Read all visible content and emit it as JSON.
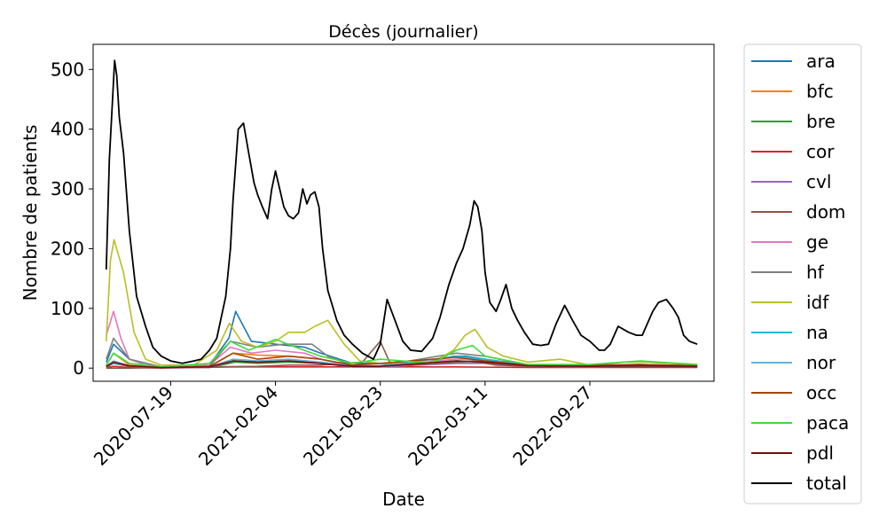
{
  "chart_data": {
    "type": "line",
    "title": "Décès (journalier)",
    "xlabel": "Date",
    "ylabel": "Nombre de patients",
    "ylim": [
      -22,
      542
    ],
    "xlim": [
      "2020-02-22",
      "2023-05-22"
    ],
    "x_ticks": [
      "2020-07-19",
      "2021-02-04",
      "2021-08-23",
      "2022-03-11",
      "2022-09-27"
    ],
    "y_ticks": [
      0,
      100,
      200,
      300,
      400,
      500
    ],
    "grid": false,
    "legend_position": "outside-right",
    "series": [
      {
        "name": "ara",
        "color": "#1f77b4",
        "dates": [
          "2020-03-18",
          "2020-04-01",
          "2020-05-01",
          "2020-07-01",
          "2020-10-01",
          "2020-11-07",
          "2020-11-20",
          "2020-12-20",
          "2021-02-04",
          "2021-04-01",
          "2021-05-01",
          "2021-07-01",
          "2021-08-23",
          "2021-11-01",
          "2022-01-10",
          "2022-02-01",
          "2022-03-11",
          "2022-04-15",
          "2022-06-01",
          "2022-09-27",
          "2023-01-01",
          "2023-03-15",
          "2023-04-20"
        ],
        "values": [
          10,
          40,
          15,
          2,
          5,
          50,
          95,
          45,
          40,
          35,
          25,
          8,
          8,
          6,
          20,
          20,
          15,
          8,
          4,
          5,
          5,
          5,
          3
        ]
      },
      {
        "name": "bfc",
        "color": "#ff7f0e",
        "dates": [
          "2020-03-18",
          "2020-04-01",
          "2020-05-01",
          "2020-07-01",
          "2020-10-01",
          "2020-11-15",
          "2021-01-01",
          "2021-03-01",
          "2021-05-01",
          "2021-07-01",
          "2021-08-23",
          "2022-01-15",
          "2022-03-11",
          "2022-06-01",
          "2022-09-27",
          "2023-01-01",
          "2023-04-20"
        ],
        "values": [
          5,
          25,
          5,
          1,
          2,
          25,
          22,
          20,
          15,
          3,
          3,
          12,
          10,
          3,
          3,
          4,
          2
        ]
      },
      {
        "name": "bre",
        "color": "#2ca02c",
        "dates": [
          "2020-03-18",
          "2020-04-01",
          "2020-05-01",
          "2020-07-01",
          "2020-10-01",
          "2020-11-20",
          "2021-01-01",
          "2021-03-01",
          "2021-05-01",
          "2021-07-01",
          "2021-08-23",
          "2022-01-15",
          "2022-03-11",
          "2022-06-01",
          "2022-09-27",
          "2023-01-01",
          "2023-04-20"
        ],
        "values": [
          2,
          8,
          3,
          1,
          1,
          10,
          8,
          10,
          8,
          2,
          2,
          10,
          12,
          5,
          3,
          5,
          3
        ]
      },
      {
        "name": "cor",
        "color": "#d62728",
        "dates": [
          "2020-03-18",
          "2020-04-01",
          "2020-05-01",
          "2020-07-01",
          "2020-11-15",
          "2021-03-01",
          "2021-08-23",
          "2022-01-15",
          "2022-06-01",
          "2022-09-27",
          "2023-04-20"
        ],
        "values": [
          1,
          3,
          1,
          0,
          2,
          2,
          2,
          2,
          1,
          1,
          1
        ]
      },
      {
        "name": "cvl",
        "color": "#9467bd",
        "dates": [
          "2020-03-18",
          "2020-04-01",
          "2020-05-01",
          "2020-07-01",
          "2020-10-01",
          "2020-11-15",
          "2021-01-01",
          "2021-03-15",
          "2021-05-01",
          "2021-07-01",
          "2021-08-23",
          "2022-01-15",
          "2022-03-11",
          "2022-06-01",
          "2022-09-27",
          "2023-01-01",
          "2023-04-20"
        ],
        "values": [
          2,
          8,
          3,
          1,
          1,
          12,
          10,
          12,
          8,
          2,
          2,
          8,
          8,
          3,
          2,
          3,
          2
        ]
      },
      {
        "name": "dom",
        "color": "#8c564b",
        "dates": [
          "2020-03-18",
          "2020-05-01",
          "2020-07-01",
          "2020-10-01",
          "2021-01-01",
          "2021-03-01",
          "2021-05-01",
          "2021-07-20",
          "2021-08-23",
          "2021-09-10",
          "2021-10-15",
          "2022-01-15",
          "2022-02-15",
          "2022-04-01",
          "2022-06-01",
          "2022-09-27",
          "2023-01-01",
          "2023-04-20"
        ],
        "values": [
          0,
          0,
          1,
          2,
          3,
          5,
          5,
          10,
          45,
          10,
          5,
          10,
          12,
          5,
          3,
          3,
          2,
          2
        ]
      },
      {
        "name": "ge",
        "color": "#e377c2",
        "dates": [
          "2020-03-18",
          "2020-04-01",
          "2020-04-15",
          "2020-05-01",
          "2020-06-01",
          "2020-07-01",
          "2020-10-01",
          "2020-11-10",
          "2020-12-20",
          "2021-02-04",
          "2021-04-01",
          "2021-05-01",
          "2021-07-01",
          "2021-08-23",
          "2022-01-15",
          "2022-03-11",
          "2022-06-01",
          "2022-09-27",
          "2023-01-01",
          "2023-04-20"
        ],
        "values": [
          55,
          95,
          50,
          15,
          5,
          2,
          5,
          35,
          25,
          30,
          25,
          15,
          3,
          3,
          15,
          15,
          5,
          3,
          5,
          3
        ]
      },
      {
        "name": "hf",
        "color": "#7f7f7f",
        "dates": [
          "2020-03-18",
          "2020-04-01",
          "2020-05-01",
          "2020-07-01",
          "2020-10-01",
          "2020-11-10",
          "2021-01-01",
          "2021-02-20",
          "2021-04-15",
          "2021-05-15",
          "2021-07-01",
          "2021-08-23",
          "2022-01-15",
          "2022-03-11",
          "2022-06-01",
          "2022-09-27",
          "2023-01-01",
          "2023-04-20"
        ],
        "values": [
          15,
          50,
          15,
          2,
          3,
          45,
          35,
          40,
          40,
          20,
          4,
          4,
          25,
          20,
          5,
          4,
          6,
          4
        ]
      },
      {
        "name": "idf",
        "color": "#bcbd22",
        "dates": [
          "2020-03-18",
          "2020-03-26",
          "2020-04-02",
          "2020-04-20",
          "2020-05-10",
          "2020-06-01",
          "2020-07-01",
          "2020-09-01",
          "2020-10-15",
          "2020-11-08",
          "2020-12-01",
          "2021-01-01",
          "2021-02-04",
          "2021-03-01",
          "2021-04-01",
          "2021-04-20",
          "2021-05-15",
          "2021-06-15",
          "2021-07-15",
          "2021-08-23",
          "2021-12-01",
          "2022-01-10",
          "2022-02-01",
          "2022-02-20",
          "2022-03-15",
          "2022-04-15",
          "2022-06-01",
          "2022-08-01",
          "2022-09-27",
          "2022-12-01",
          "2023-01-15",
          "2023-04-20"
        ],
        "values": [
          45,
          180,
          215,
          160,
          60,
          15,
          5,
          5,
          30,
          75,
          45,
          35,
          45,
          60,
          60,
          70,
          80,
          40,
          12,
          8,
          10,
          30,
          55,
          65,
          35,
          20,
          10,
          15,
          5,
          10,
          10,
          5
        ]
      },
      {
        "name": "na",
        "color": "#17becf",
        "dates": [
          "2020-03-18",
          "2020-04-01",
          "2020-05-01",
          "2020-07-01",
          "2020-10-01",
          "2020-11-15",
          "2021-01-01",
          "2021-03-01",
          "2021-05-01",
          "2021-07-01",
          "2021-08-23",
          "2022-01-15",
          "2022-03-11",
          "2022-06-01",
          "2022-09-27",
          "2023-01-01",
          "2023-04-20"
        ],
        "values": [
          2,
          8,
          3,
          1,
          2,
          12,
          10,
          12,
          10,
          3,
          3,
          20,
          15,
          5,
          5,
          6,
          4
        ]
      },
      {
        "name": "nor",
        "color": "#5fb4dc",
        "dates": [
          "2020-03-18",
          "2020-04-01",
          "2020-05-01",
          "2020-07-01",
          "2020-10-01",
          "2020-11-15",
          "2021-01-01",
          "2021-03-01",
          "2021-05-01",
          "2021-07-01",
          "2021-08-23",
          "2022-01-15",
          "2022-03-11",
          "2022-06-01",
          "2022-09-27",
          "2023-01-01",
          "2023-04-20"
        ],
        "values": [
          3,
          12,
          4,
          1,
          2,
          15,
          12,
          15,
          10,
          3,
          3,
          12,
          10,
          4,
          3,
          4,
          3
        ]
      },
      {
        "name": "occ",
        "color": "#a6430c",
        "dates": [
          "2020-03-18",
          "2020-04-01",
          "2020-05-01",
          "2020-07-01",
          "2020-10-01",
          "2020-11-15",
          "2021-01-01",
          "2021-03-01",
          "2021-05-01",
          "2021-07-01",
          "2021-08-23",
          "2022-01-15",
          "2022-03-11",
          "2022-06-01",
          "2022-09-27",
          "2023-01-01",
          "2023-04-20"
        ],
        "values": [
          2,
          10,
          3,
          1,
          3,
          25,
          15,
          20,
          15,
          5,
          8,
          18,
          12,
          5,
          5,
          6,
          4
        ]
      },
      {
        "name": "paca",
        "color": "#3ddc3d",
        "dates": [
          "2020-03-18",
          "2020-04-01",
          "2020-05-01",
          "2020-07-01",
          "2020-10-01",
          "2020-11-10",
          "2020-12-15",
          "2021-02-04",
          "2021-03-15",
          "2021-05-01",
          "2021-07-01",
          "2021-08-23",
          "2021-12-01",
          "2022-01-15",
          "2022-02-15",
          "2022-03-11",
          "2022-06-01",
          "2022-09-27",
          "2023-01-01",
          "2023-04-20"
        ],
        "values": [
          5,
          25,
          8,
          2,
          8,
          45,
          30,
          48,
          35,
          20,
          8,
          15,
          8,
          30,
          38,
          20,
          6,
          6,
          12,
          6
        ]
      },
      {
        "name": "pdl",
        "color": "#730f0f",
        "dates": [
          "2020-03-18",
          "2020-04-01",
          "2020-05-01",
          "2020-07-01",
          "2020-10-01",
          "2020-11-15",
          "2021-01-01",
          "2021-03-01",
          "2021-05-01",
          "2021-07-01",
          "2021-08-23",
          "2022-01-15",
          "2022-03-11",
          "2022-06-01",
          "2022-09-27",
          "2023-01-01",
          "2023-04-20"
        ],
        "values": [
          3,
          10,
          4,
          1,
          2,
          12,
          10,
          12,
          8,
          3,
          3,
          12,
          10,
          4,
          3,
          4,
          3
        ]
      },
      {
        "name": "total",
        "color": "#000000",
        "dates": [
          "2020-03-18",
          "2020-03-24",
          "2020-03-30",
          "2020-04-03",
          "2020-04-07",
          "2020-04-12",
          "2020-04-20",
          "2020-05-01",
          "2020-05-15",
          "2020-06-01",
          "2020-06-15",
          "2020-07-01",
          "2020-07-19",
          "2020-08-10",
          "2020-09-01",
          "2020-09-15",
          "2020-10-01",
          "2020-10-15",
          "2020-11-01",
          "2020-11-10",
          "2020-11-15",
          "2020-11-25",
          "2020-12-05",
          "2020-12-15",
          "2020-12-25",
          "2021-01-01",
          "2021-01-10",
          "2021-01-20",
          "2021-01-28",
          "2021-02-04",
          "2021-02-12",
          "2021-02-20",
          "2021-03-01",
          "2021-03-10",
          "2021-03-20",
          "2021-03-28",
          "2021-04-05",
          "2021-04-12",
          "2021-04-20",
          "2021-04-28",
          "2021-05-05",
          "2021-05-15",
          "2021-06-01",
          "2021-06-15",
          "2021-07-01",
          "2021-07-20",
          "2021-08-10",
          "2021-08-23",
          "2021-09-05",
          "2021-09-20",
          "2021-10-05",
          "2021-10-20",
          "2021-11-10",
          "2021-12-01",
          "2021-12-15",
          "2022-01-01",
          "2022-01-15",
          "2022-01-28",
          "2022-02-10",
          "2022-02-18",
          "2022-02-25",
          "2022-03-05",
          "2022-03-11",
          "2022-03-20",
          "2022-04-01",
          "2022-04-10",
          "2022-04-20",
          "2022-05-01",
          "2022-05-12",
          "2022-05-25",
          "2022-06-10",
          "2022-06-25",
          "2022-07-10",
          "2022-07-25",
          "2022-08-10",
          "2022-08-25",
          "2022-09-10",
          "2022-09-27",
          "2022-10-15",
          "2022-10-25",
          "2022-11-05",
          "2022-11-20",
          "2022-12-10",
          "2022-12-25",
          "2023-01-05",
          "2023-01-15",
          "2023-01-25",
          "2023-02-05",
          "2023-02-20",
          "2023-03-05",
          "2023-03-15",
          "2023-03-25",
          "2023-04-05",
          "2023-04-20"
        ],
        "values": [
          165,
          350,
          450,
          515,
          490,
          420,
          360,
          230,
          120,
          70,
          35,
          20,
          12,
          8,
          12,
          15,
          30,
          50,
          120,
          200,
          280,
          400,
          410,
          360,
          310,
          290,
          270,
          250,
          300,
          330,
          300,
          270,
          255,
          250,
          260,
          300,
          275,
          290,
          295,
          270,
          200,
          130,
          80,
          55,
          40,
          25,
          15,
          40,
          115,
          80,
          45,
          30,
          28,
          50,
          85,
          140,
          175,
          200,
          240,
          280,
          270,
          230,
          160,
          110,
          95,
          115,
          140,
          100,
          80,
          60,
          40,
          38,
          40,
          75,
          105,
          80,
          55,
          45,
          30,
          30,
          40,
          70,
          60,
          55,
          55,
          75,
          95,
          110,
          115,
          100,
          85,
          55,
          45,
          40
        ]
      }
    ]
  }
}
